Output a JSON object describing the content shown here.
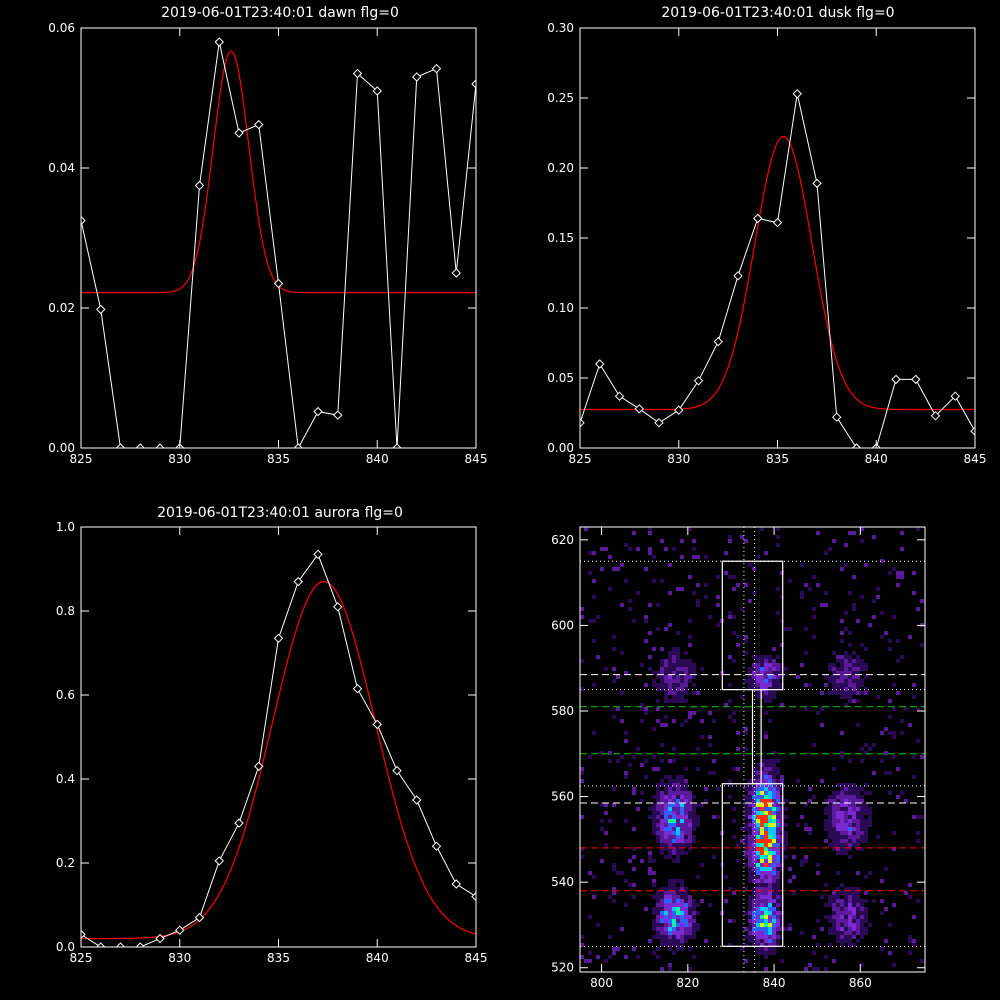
{
  "chart_data": [
    {
      "type": "line",
      "title": "2019-06-01T23:40:01 dawn flg=0",
      "xlim": [
        825,
        845
      ],
      "ylim": [
        0,
        0.06
      ],
      "xticks": [
        "825",
        "830",
        "835",
        "840",
        "845"
      ],
      "yticks": [
        "0.00",
        "0.02",
        "0.04",
        "0.06"
      ],
      "series": [
        {
          "role": "data",
          "color": "#ffffff",
          "marker": "diamond",
          "x": [
            825,
            826,
            827,
            828,
            829,
            830,
            831,
            832,
            833,
            834,
            835,
            836,
            837,
            838,
            839,
            840,
            841,
            842,
            843,
            844,
            845
          ],
          "y": [
            0.0325,
            0.0198,
            0.0,
            0.0,
            0.0,
            0.0,
            0.0375,
            0.058,
            0.045,
            0.0462,
            0.0235,
            0.0,
            0.0052,
            0.0047,
            0.0535,
            0.051,
            0.0,
            0.053,
            0.0542,
            0.025,
            0.052
          ]
        },
        {
          "role": "fit",
          "color": "#ff0000",
          "model": "gaussian",
          "baseline": 0.0222,
          "amplitude": 0.0345,
          "center": 832.6,
          "sigma": 0.9
        }
      ]
    },
    {
      "type": "line",
      "title": "2019-06-01T23:40:01 dusk flg=0",
      "xlim": [
        825,
        845
      ],
      "ylim": [
        0,
        0.3
      ],
      "xticks": [
        "825",
        "830",
        "835",
        "840",
        "845"
      ],
      "yticks": [
        "0.00",
        "0.05",
        "0.10",
        "0.15",
        "0.20",
        "0.25",
        "0.30"
      ],
      "series": [
        {
          "role": "data",
          "color": "#ffffff",
          "marker": "diamond",
          "x": [
            825,
            826,
            827,
            828,
            829,
            830,
            831,
            832,
            833,
            834,
            835,
            836,
            837,
            838,
            839,
            840,
            841,
            842,
            843,
            844,
            845
          ],
          "y": [
            0.018,
            0.06,
            0.037,
            0.028,
            0.018,
            0.027,
            0.048,
            0.076,
            0.123,
            0.164,
            0.161,
            0.253,
            0.189,
            0.022,
            0.0,
            0.0,
            0.049,
            0.049,
            0.023,
            0.037,
            0.012
          ]
        },
        {
          "role": "fit",
          "color": "#ff0000",
          "model": "gaussian",
          "baseline": 0.0275,
          "amplitude": 0.195,
          "center": 835.3,
          "sigma": 1.45
        }
      ]
    },
    {
      "type": "line",
      "title": "2019-06-01T23:40:01 aurora flg=0",
      "xlim": [
        825,
        845
      ],
      "ylim": [
        0,
        1.0
      ],
      "xticks": [
        "825",
        "830",
        "835",
        "840",
        "845"
      ],
      "yticks": [
        "0.0",
        "0.2",
        "0.4",
        "0.6",
        "0.8",
        "1.0"
      ],
      "series": [
        {
          "role": "data",
          "color": "#ffffff",
          "marker": "diamond",
          "x": [
            825,
            826,
            827,
            828,
            829,
            830,
            831,
            832,
            833,
            834,
            835,
            836,
            837,
            838,
            839,
            840,
            841,
            842,
            843,
            844,
            845
          ],
          "y": [
            0.03,
            0.0,
            0.0,
            0.0,
            0.02,
            0.04,
            0.07,
            0.205,
            0.295,
            0.43,
            0.735,
            0.87,
            0.935,
            0.81,
            0.615,
            0.53,
            0.42,
            0.35,
            0.24,
            0.15,
            0.12
          ]
        },
        {
          "role": "fit",
          "color": "#ff0000",
          "model": "gaussian",
          "baseline": 0.02,
          "amplitude": 0.85,
          "center": 837.3,
          "sigma": 2.6
        }
      ]
    },
    {
      "type": "heatmap",
      "xlim": [
        795,
        875
      ],
      "ylim": [
        519,
        623
      ],
      "xticks": [
        "800",
        "820",
        "840",
        "860"
      ],
      "yticks": [
        "520",
        "540",
        "560",
        "580",
        "600",
        "620"
      ],
      "colormap": [
        "#000000",
        "#2a0a55",
        "#5a1a9a",
        "#7a2ad0",
        "#3060ff",
        "#00c8ff",
        "#00ffa0",
        "#d0ff00",
        "#ff3000"
      ],
      "blobs": [
        {
          "x": 838,
          "y": 556,
          "sx": 2.2,
          "sy": 6,
          "amp": 1.0
        },
        {
          "x": 838,
          "y": 546,
          "sx": 2.2,
          "sy": 4,
          "amp": 0.7
        },
        {
          "x": 838,
          "y": 531,
          "sx": 2.2,
          "sy": 4,
          "amp": 0.8
        },
        {
          "x": 838,
          "y": 588,
          "sx": 2.5,
          "sy": 3,
          "amp": 0.45
        },
        {
          "x": 817,
          "y": 555,
          "sx": 2.8,
          "sy": 5,
          "amp": 0.6
        },
        {
          "x": 817,
          "y": 532,
          "sx": 2.8,
          "sy": 4,
          "amp": 0.65
        },
        {
          "x": 817,
          "y": 588,
          "sx": 3.0,
          "sy": 4,
          "amp": 0.3
        },
        {
          "x": 857,
          "y": 555,
          "sx": 3.0,
          "sy": 5,
          "amp": 0.4
        },
        {
          "x": 857,
          "y": 532,
          "sx": 3.0,
          "sy": 4,
          "amp": 0.35
        },
        {
          "x": 857,
          "y": 588,
          "sx": 3.0,
          "sy": 4,
          "amp": 0.25
        }
      ],
      "boxes": [
        {
          "x0": 828,
          "x1": 842,
          "y0": 585,
          "y1": 615,
          "color": "#ffffff"
        },
        {
          "x0": 828,
          "x1": 842,
          "y0": 525,
          "y1": 563,
          "color": "#ffffff"
        },
        {
          "x0": 835,
          "x1": 837,
          "y0": 563,
          "y1": 585,
          "color": "#ffffff"
        }
      ],
      "hlines": [
        {
          "y": 615,
          "color": "#ffffff",
          "style": "dotted"
        },
        {
          "y": 588.5,
          "color": "#ffffff",
          "style": "dashed"
        },
        {
          "y": 585,
          "color": "#ffffff",
          "style": "dotted"
        },
        {
          "y": 581,
          "color": "#00cc00",
          "style": "dashed"
        },
        {
          "y": 570,
          "color": "#00cc00",
          "style": "dashed"
        },
        {
          "y": 562.5,
          "color": "#ffffff",
          "style": "dotted"
        },
        {
          "y": 558.5,
          "color": "#ffffff",
          "style": "dashed"
        },
        {
          "y": 548,
          "color": "#ff0000",
          "style": "dashed"
        },
        {
          "y": 538,
          "color": "#ff0000",
          "style": "dashed"
        },
        {
          "y": 525,
          "color": "#ffffff",
          "style": "dotted"
        }
      ],
      "vlines": [
        {
          "x": 833,
          "color": "#ffffff",
          "style": "dotted"
        },
        {
          "x": 835.5,
          "color": "#ffffff",
          "style": "dotted"
        }
      ]
    }
  ]
}
